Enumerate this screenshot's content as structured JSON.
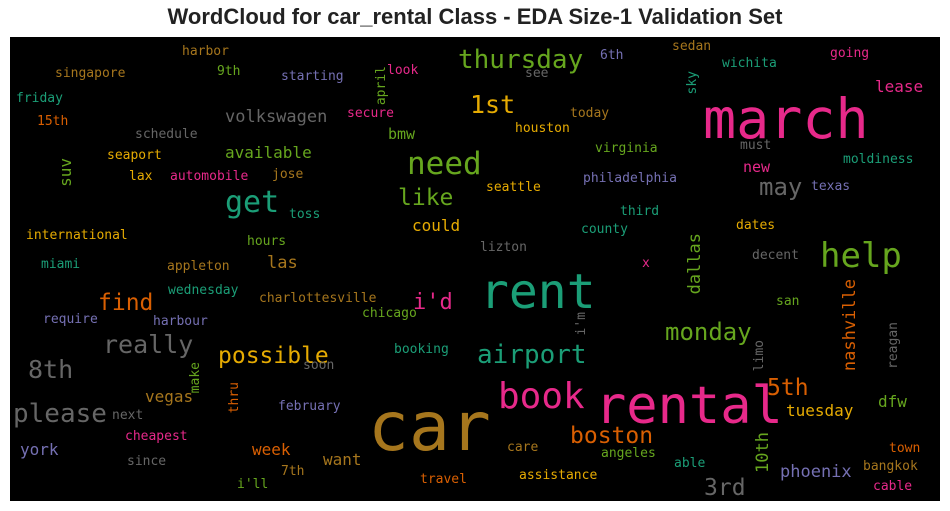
{
  "chart_data": {
    "type": "wordcloud",
    "title": "WordCloud for car_rental Class - EDA Size-1 Validation Set",
    "background": "#000000",
    "palette": "Dark2",
    "words": [
      {
        "text": "car",
        "color": "#a6761d"
      },
      {
        "text": "rental",
        "color": "#e7298a"
      },
      {
        "text": "march",
        "color": "#e7298a"
      },
      {
        "text": "rent",
        "color": "#1b9e77"
      },
      {
        "text": "book",
        "color": "#e7298a"
      },
      {
        "text": "help",
        "color": "#66a61e"
      },
      {
        "text": "need",
        "color": "#66a61e"
      },
      {
        "text": "airport",
        "color": "#1b9e77"
      },
      {
        "text": "get",
        "color": "#1b9e77"
      },
      {
        "text": "thursday",
        "color": "#66a61e"
      },
      {
        "text": "please",
        "color": "#666666"
      },
      {
        "text": "boston",
        "color": "#d95f02"
      },
      {
        "text": "monday",
        "color": "#66a61e"
      },
      {
        "text": "1st",
        "color": "#e6ab02"
      },
      {
        "text": "possible",
        "color": "#e6ab02"
      },
      {
        "text": "8th",
        "color": "#666666"
      },
      {
        "text": "5th",
        "color": "#d95f02"
      },
      {
        "text": "really",
        "color": "#666666"
      },
      {
        "text": "may",
        "color": "#666666"
      },
      {
        "text": "3rd",
        "color": "#666666"
      },
      {
        "text": "find",
        "color": "#d95f02"
      },
      {
        "text": "like",
        "color": "#66a61e"
      },
      {
        "text": "i'd",
        "color": "#e7298a"
      },
      {
        "text": "nashville",
        "color": "#d95f02"
      },
      {
        "text": "dallas",
        "color": "#66a61e"
      },
      {
        "text": "10th",
        "color": "#66a61e"
      },
      {
        "text": "volkswagen",
        "color": "#666666"
      },
      {
        "text": "phoenix",
        "color": "#7570b3"
      },
      {
        "text": "tuesday",
        "color": "#e6ab02"
      },
      {
        "text": "las",
        "color": "#a6761d"
      },
      {
        "text": "vegas",
        "color": "#a6761d"
      },
      {
        "text": "want",
        "color": "#a6761d"
      },
      {
        "text": "york",
        "color": "#7570b3"
      },
      {
        "text": "week",
        "color": "#d95f02"
      },
      {
        "text": "available",
        "color": "#66a61e"
      },
      {
        "text": "could",
        "color": "#e6ab02"
      },
      {
        "text": "lease",
        "color": "#e7298a"
      },
      {
        "text": "dfw",
        "color": "#66a61e"
      },
      {
        "text": "suv",
        "color": "#66a61e"
      },
      {
        "text": "new",
        "color": "#e7298a"
      },
      {
        "text": "bmw",
        "color": "#66a61e"
      },
      {
        "text": "seattle",
        "color": "#e6ab02"
      },
      {
        "text": "philadelphia",
        "color": "#7570b3"
      },
      {
        "text": "virginia",
        "color": "#66a61e"
      },
      {
        "text": "moldiness",
        "color": "#1b9e77"
      },
      {
        "text": "houston",
        "color": "#e6ab02"
      },
      {
        "text": "must",
        "color": "#666666"
      },
      {
        "text": "texas",
        "color": "#7570b3"
      },
      {
        "text": "third",
        "color": "#1b9e77"
      },
      {
        "text": "county",
        "color": "#1b9e77"
      },
      {
        "text": "dates",
        "color": "#e6ab02"
      },
      {
        "text": "lizton",
        "color": "#666666"
      },
      {
        "text": "decent",
        "color": "#666666"
      },
      {
        "text": "x",
        "color": "#e7298a"
      },
      {
        "text": "san",
        "color": "#66a61e"
      },
      {
        "text": "limo",
        "color": "#666666"
      },
      {
        "text": "reagan",
        "color": "#666666"
      },
      {
        "text": "i'm",
        "color": "#666666"
      },
      {
        "text": "chicago",
        "color": "#66a61e"
      },
      {
        "text": "charlottesville",
        "color": "#a6761d"
      },
      {
        "text": "booking",
        "color": "#1b9e77"
      },
      {
        "text": "soon",
        "color": "#666666"
      },
      {
        "text": "make",
        "color": "#66a61e"
      },
      {
        "text": "thru",
        "color": "#d95f02"
      },
      {
        "text": "february",
        "color": "#7570b3"
      },
      {
        "text": "cheapest",
        "color": "#e7298a"
      },
      {
        "text": "next",
        "color": "#666666"
      },
      {
        "text": "since",
        "color": "#666666"
      },
      {
        "text": "i'll",
        "color": "#66a61e"
      },
      {
        "text": "7th",
        "color": "#a6761d"
      },
      {
        "text": "travel",
        "color": "#d95f02"
      },
      {
        "text": "assistance",
        "color": "#e6ab02"
      },
      {
        "text": "care",
        "color": "#a6761d"
      },
      {
        "text": "angeles",
        "color": "#66a61e"
      },
      {
        "text": "able",
        "color": "#1b9e77"
      },
      {
        "text": "bangkok",
        "color": "#a6761d"
      },
      {
        "text": "town",
        "color": "#d95f02"
      },
      {
        "text": "cable",
        "color": "#e7298a"
      },
      {
        "text": "harbor",
        "color": "#a6761d"
      },
      {
        "text": "singapore",
        "color": "#a6761d"
      },
      {
        "text": "9th",
        "color": "#66a61e"
      },
      {
        "text": "friday",
        "color": "#1b9e77"
      },
      {
        "text": "15th",
        "color": "#d95f02"
      },
      {
        "text": "schedule",
        "color": "#666666"
      },
      {
        "text": "seaport",
        "color": "#e6ab02"
      },
      {
        "text": "lax",
        "color": "#e6ab02"
      },
      {
        "text": "automobile",
        "color": "#e7298a"
      },
      {
        "text": "jose",
        "color": "#a6761d"
      },
      {
        "text": "starting",
        "color": "#7570b3"
      },
      {
        "text": "april",
        "color": "#66a61e"
      },
      {
        "text": "look",
        "color": "#e7298a"
      },
      {
        "text": "secure",
        "color": "#e7298a"
      },
      {
        "text": "see",
        "color": "#666666"
      },
      {
        "text": "today",
        "color": "#a6761d"
      },
      {
        "text": "6th",
        "color": "#7570b3"
      },
      {
        "text": "sky",
        "color": "#1b9e77"
      },
      {
        "text": "sedan",
        "color": "#a6761d"
      },
      {
        "text": "wichita",
        "color": "#1b9e77"
      },
      {
        "text": "going",
        "color": "#e7298a"
      },
      {
        "text": "international",
        "color": "#e6ab02"
      },
      {
        "text": "hours",
        "color": "#66a61e"
      },
      {
        "text": "toss",
        "color": "#1b9e77"
      },
      {
        "text": "miami",
        "color": "#1b9e77"
      },
      {
        "text": "appleton",
        "color": "#a6761d"
      },
      {
        "text": "wednesday",
        "color": "#1b9e77"
      },
      {
        "text": "require",
        "color": "#7570b3"
      },
      {
        "text": "harbour",
        "color": "#7570b3"
      }
    ]
  }
}
